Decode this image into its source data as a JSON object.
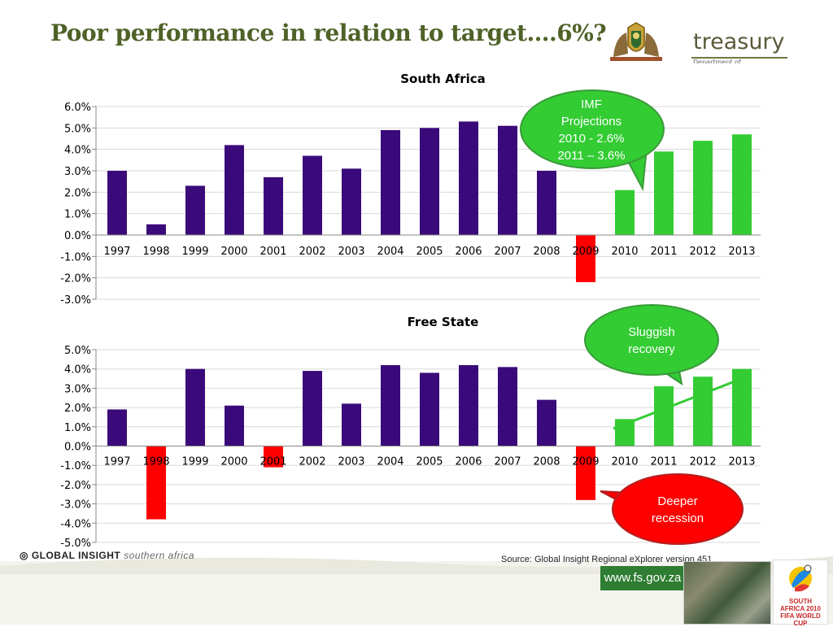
{
  "slide": {
    "title": "Poor performance in relation to target….6%?"
  },
  "logo": {
    "wordmark": "treasury",
    "subtext": "Department of"
  },
  "chart_data": [
    {
      "type": "bar",
      "title": "South Africa",
      "categories": [
        "1997",
        "1998",
        "1999",
        "2000",
        "2001",
        "2002",
        "2003",
        "2004",
        "2005",
        "2006",
        "2007",
        "2008",
        "2009",
        "2010",
        "2011",
        "2012",
        "2013"
      ],
      "values": [
        3.0,
        0.5,
        2.3,
        4.2,
        2.7,
        3.7,
        3.1,
        4.9,
        5.0,
        5.3,
        5.1,
        3.0,
        -2.2,
        2.1,
        3.9,
        4.4,
        4.7
      ],
      "bar_colors": [
        "#3b0a7a",
        "#3b0a7a",
        "#3b0a7a",
        "#3b0a7a",
        "#3b0a7a",
        "#3b0a7a",
        "#3b0a7a",
        "#3b0a7a",
        "#3b0a7a",
        "#3b0a7a",
        "#3b0a7a",
        "#3b0a7a",
        "#ff0000",
        "#33cc33",
        "#33cc33",
        "#33cc33",
        "#33cc33"
      ],
      "ylim": [
        -3.0,
        6.0
      ],
      "yticks": [
        "6.0%",
        "5.0%",
        "4.0%",
        "3.0%",
        "2.0%",
        "1.0%",
        "0.0%",
        "-1.0%",
        "-2.0%",
        "-3.0%"
      ],
      "grid": true,
      "callout": {
        "lines": [
          "IMF",
          "Projections",
          "2010 - 2.6%",
          "2011 – 3.6%"
        ],
        "color": "#33cc33"
      }
    },
    {
      "type": "bar",
      "title": "Free State",
      "categories": [
        "1997",
        "1998",
        "1999",
        "2000",
        "2001",
        "2002",
        "2003",
        "2004",
        "2005",
        "2006",
        "2007",
        "2008",
        "2009",
        "2010",
        "2011",
        "2012",
        "2013"
      ],
      "values": [
        1.9,
        -3.8,
        4.0,
        2.1,
        -1.1,
        3.9,
        2.2,
        4.2,
        3.8,
        4.2,
        4.1,
        2.4,
        -2.8,
        1.4,
        3.1,
        3.6,
        4.0
      ],
      "bar_colors": [
        "#3b0a7a",
        "#ff0000",
        "#3b0a7a",
        "#3b0a7a",
        "#ff0000",
        "#3b0a7a",
        "#3b0a7a",
        "#3b0a7a",
        "#3b0a7a",
        "#3b0a7a",
        "#3b0a7a",
        "#3b0a7a",
        "#ff0000",
        "#33cc33",
        "#33cc33",
        "#33cc33",
        "#33cc33"
      ],
      "ylim": [
        -5.0,
        5.0
      ],
      "yticks": [
        "5.0%",
        "4.0%",
        "3.0%",
        "2.0%",
        "1.0%",
        "0.0%",
        "-1.0%",
        "-2.0%",
        "-3.0%",
        "-4.0%",
        "-5.0%"
      ],
      "grid": true,
      "trend": {
        "from_category": "2010",
        "to_category": "2013",
        "from_value": 0.9,
        "to_value": 3.5,
        "color": "#33cc33"
      },
      "callouts": [
        {
          "lines": [
            "Sluggish",
            "recovery"
          ],
          "color": "#33cc33"
        },
        {
          "lines": [
            "Deeper",
            "recession"
          ],
          "color": "#ff0000"
        }
      ]
    }
  ],
  "footer": {
    "logo_text": "GLOBAL INSIGHT",
    "logo_script": "southern africa",
    "source": "Source: Global Insight Regional eXplorer version 451",
    "url": "www.fs.gov.za",
    "world_cup": "SOUTH AFRICA 2010 FIFA WORLD CUP"
  },
  "colors": {
    "title": "#4f6228",
    "bar_historic": "#3b0a7a",
    "bar_negative": "#ff0000",
    "bar_projection": "#33cc33"
  }
}
